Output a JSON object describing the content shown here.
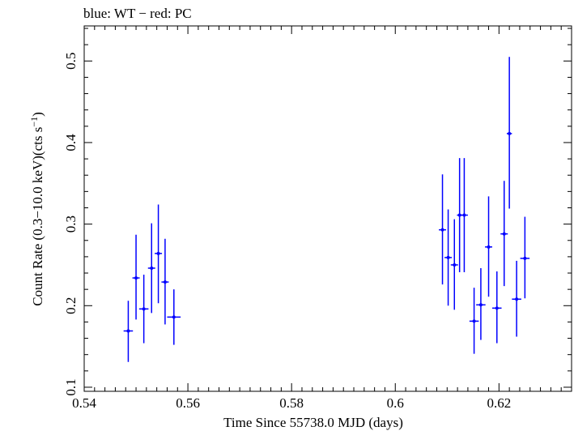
{
  "chart_data": {
    "type": "scatter",
    "title": "blue: WT − red: PC",
    "xlabel": "Time Since 55738.0 MJD (days)",
    "ylabel": "Count Rate (0.3−10.0 keV)(cts s",
    "ylabel_sup": "−1",
    "ylabel_close": ")",
    "xlim": [
      0.54,
      0.634
    ],
    "ylim": [
      0.095,
      0.543
    ],
    "xticks": [
      0.54,
      0.56,
      0.58,
      0.6,
      0.62
    ],
    "xtick_labels": [
      "0.54",
      "0.56",
      "0.58",
      "0.6",
      "0.62"
    ],
    "yticks": [
      0.1,
      0.2,
      0.3,
      0.4,
      0.5
    ],
    "ytick_labels": [
      "0.1",
      "0.2",
      "0.3",
      "0.4",
      "0.5"
    ],
    "grid": false,
    "colors": {
      "series": "#0000ff",
      "axes": "#000000",
      "background": "#ffffff"
    },
    "series": [
      {
        "color": "#0000ff",
        "points": [
          {
            "x": 0.5485,
            "y": 0.169,
            "xerr": 0.0009,
            "ylo": 0.131,
            "yhi": 0.206
          },
          {
            "x": 0.55,
            "y": 0.234,
            "xerr": 0.0007,
            "ylo": 0.183,
            "yhi": 0.287
          },
          {
            "x": 0.5515,
            "y": 0.196,
            "xerr": 0.0009,
            "ylo": 0.154,
            "yhi": 0.238
          },
          {
            "x": 0.553,
            "y": 0.246,
            "xerr": 0.0007,
            "ylo": 0.191,
            "yhi": 0.301
          },
          {
            "x": 0.5543,
            "y": 0.264,
            "xerr": 0.0007,
            "ylo": 0.203,
            "yhi": 0.324
          },
          {
            "x": 0.5556,
            "y": 0.229,
            "xerr": 0.0007,
            "ylo": 0.177,
            "yhi": 0.282
          },
          {
            "x": 0.5573,
            "y": 0.186,
            "xerr": 0.0013,
            "ylo": 0.152,
            "yhi": 0.22
          },
          {
            "x": 0.6091,
            "y": 0.293,
            "xerr": 0.0007,
            "ylo": 0.226,
            "yhi": 0.361
          },
          {
            "x": 0.6102,
            "y": 0.259,
            "xerr": 0.0007,
            "ylo": 0.2,
            "yhi": 0.318
          },
          {
            "x": 0.6114,
            "y": 0.25,
            "xerr": 0.0007,
            "ylo": 0.195,
            "yhi": 0.306
          },
          {
            "x": 0.6124,
            "y": 0.311,
            "xerr": 0.0005,
            "ylo": 0.241,
            "yhi": 0.381
          },
          {
            "x": 0.6133,
            "y": 0.311,
            "xerr": 0.0007,
            "ylo": 0.241,
            "yhi": 0.381
          },
          {
            "x": 0.6152,
            "y": 0.181,
            "xerr": 0.0009,
            "ylo": 0.141,
            "yhi": 0.222
          },
          {
            "x": 0.6165,
            "y": 0.201,
            "xerr": 0.0009,
            "ylo": 0.158,
            "yhi": 0.246
          },
          {
            "x": 0.618,
            "y": 0.272,
            "xerr": 0.0007,
            "ylo": 0.211,
            "yhi": 0.334
          },
          {
            "x": 0.6196,
            "y": 0.197,
            "xerr": 0.0009,
            "ylo": 0.154,
            "yhi": 0.242
          },
          {
            "x": 0.621,
            "y": 0.288,
            "xerr": 0.0007,
            "ylo": 0.224,
            "yhi": 0.353
          },
          {
            "x": 0.622,
            "y": 0.411,
            "xerr": 0.0005,
            "ylo": 0.319,
            "yhi": 0.505
          },
          {
            "x": 0.6234,
            "y": 0.208,
            "xerr": 0.0009,
            "ylo": 0.162,
            "yhi": 0.255
          },
          {
            "x": 0.625,
            "y": 0.258,
            "xerr": 0.0009,
            "ylo": 0.209,
            "yhi": 0.309
          }
        ]
      }
    ]
  }
}
